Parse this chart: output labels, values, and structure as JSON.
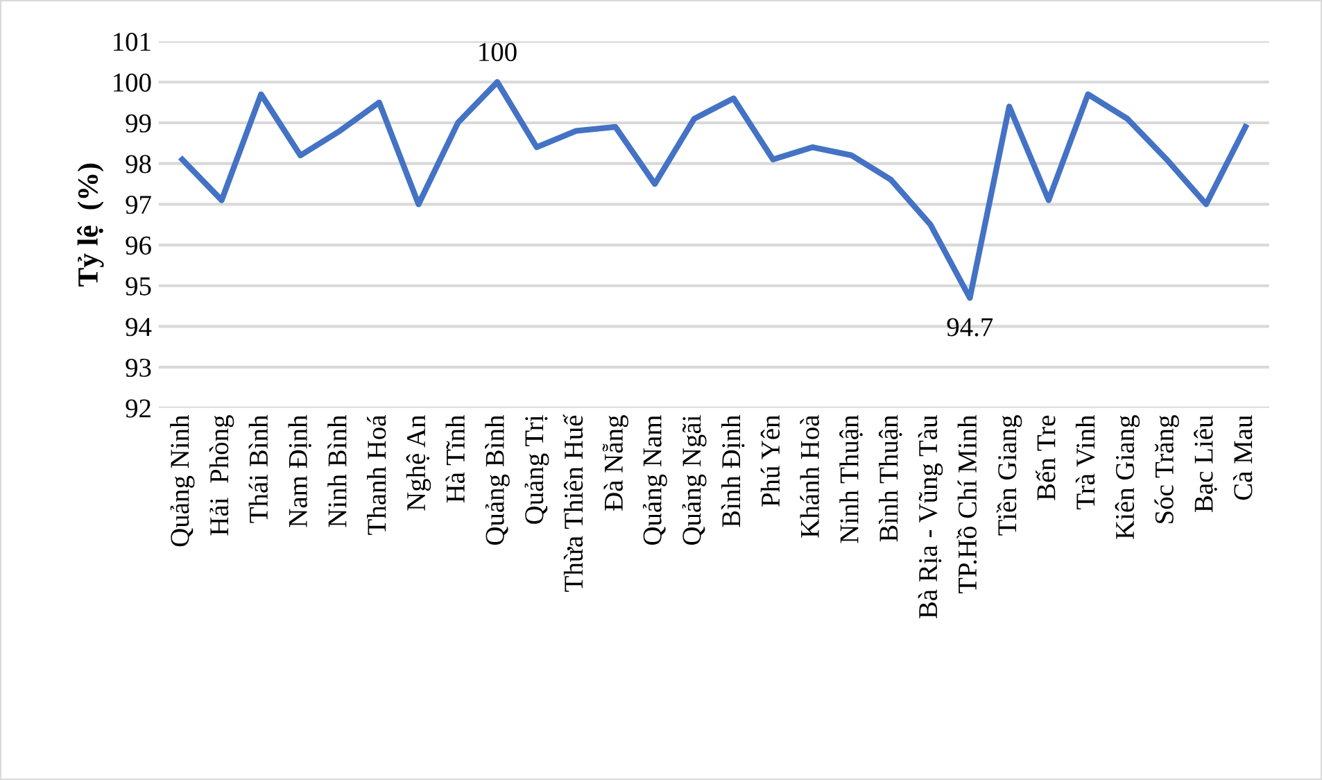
{
  "chart_data": {
    "type": "line",
    "ylabel": "Tỷ lệ  (%)",
    "categories": [
      "Quảng Ninh",
      "Hải  Phòng",
      "Thái Bình",
      "Nam Định",
      "Ninh Bình",
      "Thanh Hoá",
      "Nghệ An",
      "Hà Tĩnh",
      "Quảng Bình",
      "Quảng Trị",
      "Thừa Thiên Huế",
      "Đà Nẵng",
      "Quảng Nam",
      "Quảng Ngãi",
      "Bình Định",
      "Phú Yên",
      "Khánh Hoà",
      "Ninh Thuận",
      "Bình Thuận",
      "Bà Rịa - Vũng Tàu",
      "TP.Hồ Chí Minh",
      "Tiền Giang",
      "Bến Tre",
      "Trà Vinh",
      "Kiên Giang",
      "Sóc Trăng",
      "Bạc Liêu",
      "Cà Mau"
    ],
    "series": [
      {
        "color": "#4472c4",
        "values": [
          98.1,
          97.1,
          99.7,
          98.2,
          98.8,
          99.5,
          97.0,
          99.0,
          100,
          98.4,
          98.8,
          98.9,
          97.5,
          99.1,
          99.6,
          98.1,
          98.4,
          98.2,
          97.6,
          96.5,
          94.7,
          99.4,
          97.1,
          99.7,
          99.1,
          98.1,
          97.0,
          98.9
        ],
        "value_labels": [
          null,
          null,
          null,
          null,
          null,
          null,
          null,
          null,
          "100",
          null,
          null,
          null,
          null,
          null,
          null,
          null,
          null,
          null,
          null,
          null,
          "94.7",
          null,
          null,
          null,
          null,
          null,
          null,
          null
        ]
      }
    ],
    "ylim": [
      92,
      101
    ],
    "yticks": [
      92,
      93,
      94,
      95,
      96,
      97,
      98,
      99,
      100,
      101
    ],
    "grid": "y",
    "marker": "none",
    "line_style": "solid"
  }
}
